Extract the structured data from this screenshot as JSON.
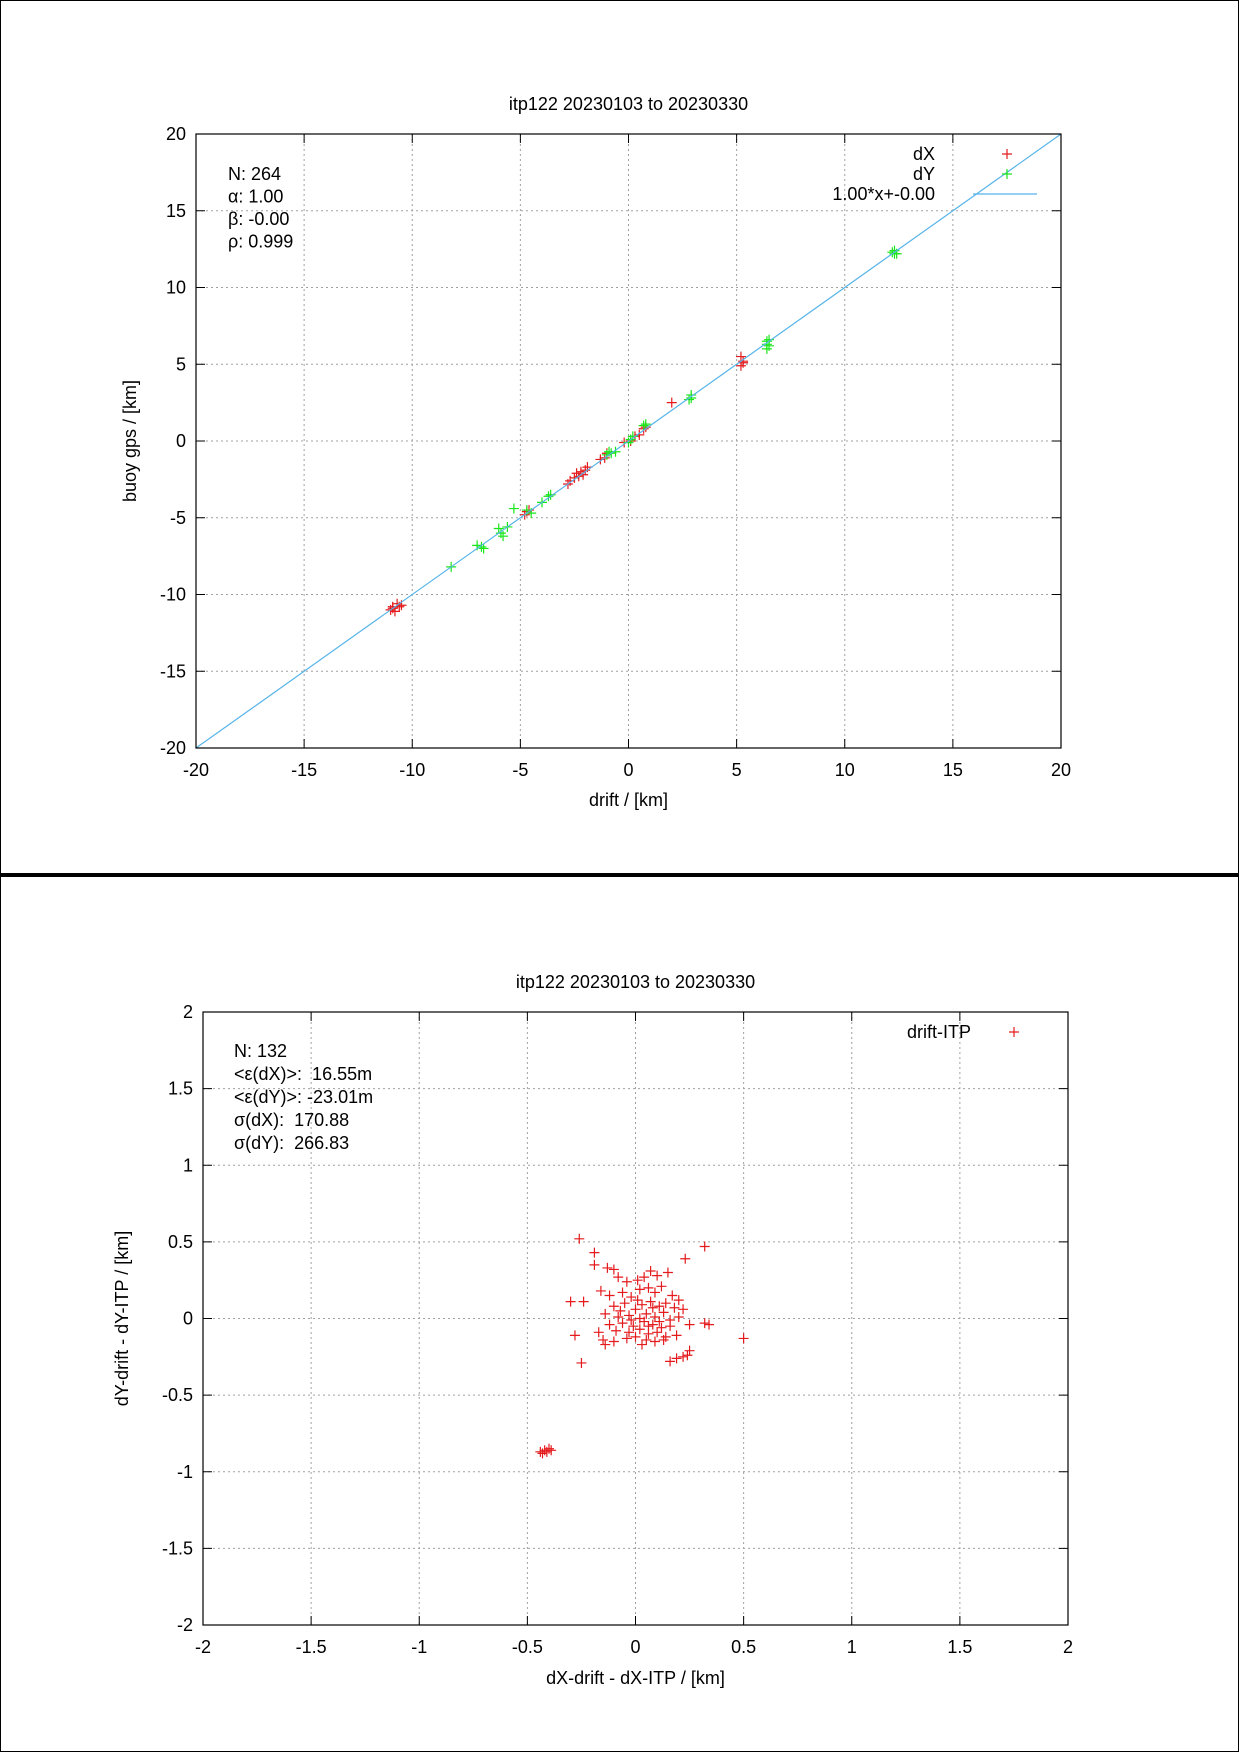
{
  "chart_data": [
    {
      "type": "scatter",
      "title": "itp122 20230103 to 20230330",
      "xlabel": "drift / [km]",
      "ylabel": "buoy gps / [km]",
      "xlim": [
        -20,
        20
      ],
      "ylim": [
        -20,
        20
      ],
      "xticks": [
        "-20",
        "-15",
        "-10",
        "-5",
        "0",
        "5",
        "10",
        "15",
        "20"
      ],
      "yticks": [
        "-20",
        "-15",
        "-10",
        "-5",
        "0",
        "5",
        "10",
        "15",
        "20"
      ],
      "grid": true,
      "legend_position": "top-right",
      "stats": [
        "N: 264",
        "α: 1.00",
        "β: -0.00",
        "ρ: 0.999"
      ],
      "series": [
        {
          "name": "dX",
          "kind": "points",
          "color": "#e41a1c",
          "points": [
            [
              -11.0,
              -11.0
            ],
            [
              -10.9,
              -10.8
            ],
            [
              -10.8,
              -11.1
            ],
            [
              -10.7,
              -10.6
            ],
            [
              -10.6,
              -10.8
            ],
            [
              -10.5,
              -10.7
            ],
            [
              -10.9,
              -10.9
            ],
            [
              -4.7,
              -4.6
            ],
            [
              -4.8,
              -4.8
            ],
            [
              -4.6,
              -4.5
            ],
            [
              -2.8,
              -2.8
            ],
            [
              -2.7,
              -2.6
            ],
            [
              -2.5,
              -2.4
            ],
            [
              -2.3,
              -2.3
            ],
            [
              -2.4,
              -2.1
            ],
            [
              -2.1,
              -2.2
            ],
            [
              -2.0,
              -1.9
            ],
            [
              -1.9,
              -1.7
            ],
            [
              -2.2,
              -2.0
            ],
            [
              -1.3,
              -1.2
            ],
            [
              -1.1,
              -1.1
            ],
            [
              0.1,
              0.0
            ],
            [
              0.3,
              0.3
            ],
            [
              0.5,
              0.4
            ],
            [
              0.7,
              0.8
            ],
            [
              0.8,
              0.9
            ],
            [
              2.0,
              2.5
            ],
            [
              5.2,
              5.5
            ],
            [
              5.3,
              5.2
            ],
            [
              5.2,
              4.9
            ],
            [
              5.3,
              5.1
            ],
            [
              -1.0,
              -0.8
            ],
            [
              -0.2,
              -0.1
            ]
          ]
        },
        {
          "name": "dY",
          "kind": "points",
          "color": "#19e619",
          "points": [
            [
              -8.2,
              -8.2
            ],
            [
              -7.0,
              -6.8
            ],
            [
              -6.8,
              -6.9
            ],
            [
              -6.7,
              -7.0
            ],
            [
              -6.0,
              -5.7
            ],
            [
              -5.9,
              -6.0
            ],
            [
              -5.8,
              -6.2
            ],
            [
              -5.6,
              -5.6
            ],
            [
              -5.3,
              -4.4
            ],
            [
              -4.7,
              -4.5
            ],
            [
              -4.5,
              -4.7
            ],
            [
              -4.0,
              -4.0
            ],
            [
              -3.7,
              -3.6
            ],
            [
              -3.6,
              -3.5
            ],
            [
              -1.0,
              -0.9
            ],
            [
              -0.9,
              -0.7
            ],
            [
              -0.8,
              -0.8
            ],
            [
              -0.6,
              -0.7
            ],
            [
              0.0,
              -0.1
            ],
            [
              0.1,
              0.1
            ],
            [
              0.2,
              0.3
            ],
            [
              0.7,
              1.0
            ],
            [
              0.8,
              1.1
            ],
            [
              2.9,
              2.8
            ],
            [
              2.9,
              3.0
            ],
            [
              2.8,
              2.7
            ],
            [
              6.4,
              6.5
            ],
            [
              6.5,
              6.2
            ],
            [
              6.4,
              6.3
            ],
            [
              6.5,
              6.6
            ],
            [
              6.4,
              6.0
            ],
            [
              12.3,
              12.4
            ],
            [
              12.3,
              12.2
            ],
            [
              12.2,
              12.3
            ],
            [
              12.4,
              12.2
            ]
          ]
        },
        {
          "name": "1.00*x+-0.00",
          "kind": "line",
          "color": "#56b4e9",
          "slope": 1.0,
          "intercept": 0.0
        }
      ]
    },
    {
      "type": "scatter",
      "title": "itp122 20230103 to 20230330",
      "xlabel": "dX-drift - dX-ITP / [km]",
      "ylabel": "dY-drift - dY-ITP / [km]",
      "xlim": [
        -2,
        2
      ],
      "ylim": [
        -2,
        2
      ],
      "xticks": [
        "-2",
        "-1.5",
        "-1",
        "-0.5",
        "0",
        "0.5",
        "1",
        "1.5",
        "2"
      ],
      "yticks": [
        "-2",
        "-1.5",
        "-1",
        "-0.5",
        "0",
        "0.5",
        "1",
        "1.5",
        "2"
      ],
      "grid": true,
      "legend_position": "top-right",
      "stats": [
        "N: 132",
        "<ε(dX)>:  16.55m",
        "<ε(dY)>: -23.01m",
        "σ(dX):  170.88",
        "σ(dY):  266.83"
      ],
      "series": [
        {
          "name": "drift-ITP",
          "kind": "points",
          "color": "#e41a1c",
          "points": [
            [
              -0.26,
              0.52
            ],
            [
              -0.19,
              0.43
            ],
            [
              -0.19,
              0.35
            ],
            [
              -0.13,
              0.33
            ],
            [
              -0.1,
              0.32
            ],
            [
              -0.08,
              0.27
            ],
            [
              -0.04,
              0.24
            ],
            [
              0.01,
              0.25
            ],
            [
              0.04,
              0.27
            ],
            [
              0.07,
              0.31
            ],
            [
              0.1,
              0.28
            ],
            [
              0.15,
              0.3
            ],
            [
              0.23,
              0.39
            ],
            [
              0.32,
              0.47
            ],
            [
              -0.3,
              0.11
            ],
            [
              -0.24,
              0.11
            ],
            [
              -0.16,
              0.18
            ],
            [
              -0.12,
              0.15
            ],
            [
              -0.06,
              0.17
            ],
            [
              -0.02,
              0.14
            ],
            [
              0.02,
              0.19
            ],
            [
              0.06,
              0.2
            ],
            [
              0.09,
              0.17
            ],
            [
              0.12,
              0.21
            ],
            [
              0.17,
              0.15
            ],
            [
              0.2,
              0.12
            ],
            [
              -0.1,
              0.08
            ],
            [
              -0.05,
              0.1
            ],
            [
              0.0,
              0.06
            ],
            [
              0.03,
              0.09
            ],
            [
              0.07,
              0.11
            ],
            [
              0.11,
              0.08
            ],
            [
              0.14,
              0.1
            ],
            [
              0.18,
              0.07
            ],
            [
              0.22,
              0.06
            ],
            [
              -0.14,
              0.03
            ],
            [
              -0.08,
              0.01
            ],
            [
              -0.03,
              0.02
            ],
            [
              0.02,
              0.0
            ],
            [
              0.05,
              0.03
            ],
            [
              0.09,
              0.01
            ],
            [
              0.13,
              0.04
            ],
            [
              0.16,
              -0.01
            ],
            [
              0.2,
              0.01
            ],
            [
              -0.12,
              -0.04
            ],
            [
              -0.06,
              -0.03
            ],
            [
              -0.01,
              -0.05
            ],
            [
              0.04,
              -0.02
            ],
            [
              0.08,
              -0.04
            ],
            [
              0.12,
              -0.06
            ],
            [
              0.16,
              -0.05
            ],
            [
              0.25,
              -0.04
            ],
            [
              0.32,
              -0.03
            ],
            [
              0.34,
              -0.04
            ],
            [
              -0.17,
              -0.09
            ],
            [
              -0.09,
              -0.08
            ],
            [
              -0.03,
              -0.09
            ],
            [
              0.02,
              -0.07
            ],
            [
              0.06,
              -0.1
            ],
            [
              0.1,
              -0.09
            ],
            [
              0.14,
              -0.12
            ],
            [
              0.19,
              -0.11
            ],
            [
              -0.15,
              -0.14
            ],
            [
              -0.1,
              -0.15
            ],
            [
              -0.04,
              -0.13
            ],
            [
              0.0,
              -0.12
            ],
            [
              0.05,
              -0.14
            ],
            [
              0.09,
              -0.15
            ],
            [
              0.13,
              -0.14
            ],
            [
              0.5,
              -0.13
            ],
            [
              -0.28,
              -0.11
            ],
            [
              -0.14,
              -0.17
            ],
            [
              0.03,
              -0.17
            ],
            [
              0.16,
              -0.28
            ],
            [
              0.19,
              -0.26
            ],
            [
              0.22,
              -0.25
            ],
            [
              0.24,
              -0.24
            ],
            [
              0.25,
              -0.21
            ],
            [
              -0.25,
              -0.29
            ],
            [
              0.06,
              -0.05
            ],
            [
              0.01,
              0.12
            ],
            [
              -0.07,
              0.05
            ],
            [
              0.11,
              -0.02
            ],
            [
              0.08,
              0.07
            ],
            [
              -0.02,
              -0.01
            ],
            [
              -0.44,
              -0.87
            ],
            [
              -0.43,
              -0.88
            ],
            [
              -0.42,
              -0.86
            ],
            [
              -0.41,
              -0.87
            ],
            [
              -0.4,
              -0.85
            ],
            [
              -0.39,
              -0.86
            ]
          ]
        }
      ]
    }
  ]
}
